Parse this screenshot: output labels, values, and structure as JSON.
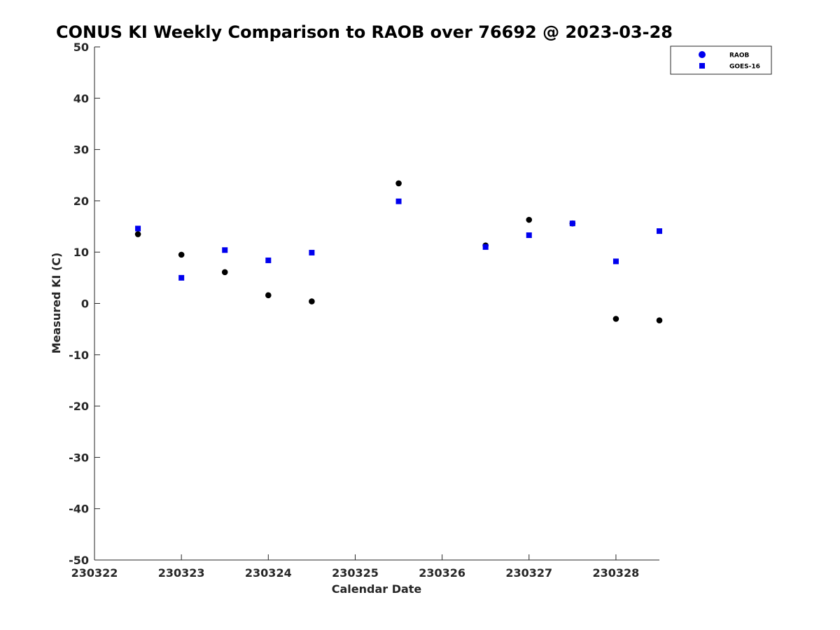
{
  "chart_data": {
    "type": "scatter",
    "title": "CONUS KI Weekly Comparison to RAOB over 76692 @ 2023-03-28",
    "xlabel": "Calendar Date",
    "ylabel": "Measured KI (C)",
    "xlim": [
      "2023-03-22",
      "2023-03-28T12:00"
    ],
    "ylim": [
      -50,
      50
    ],
    "x_ticks": [
      "2023-03-22",
      "2023-03-23",
      "2023-03-24",
      "2023-03-25",
      "2023-03-26",
      "2023-03-27",
      "2023-03-28"
    ],
    "x_tick_labels": [
      "230322",
      "230323",
      "230324",
      "230325",
      "230326",
      "230327",
      "230328"
    ],
    "y_ticks": [
      50,
      40,
      30,
      20,
      10,
      0,
      -10,
      -20,
      -30,
      -40,
      -50
    ],
    "y_tick_labels": [
      "50",
      "40",
      "30",
      "20",
      "10",
      "0",
      "-10",
      "-20",
      "-30",
      "-40",
      "-50"
    ],
    "grid": false,
    "legend_position": "top-right",
    "series": [
      {
        "name": "RAOB",
        "marker": "circle",
        "color": "#000000",
        "legend_color": "#0000ee",
        "points": [
          {
            "x": "2023-03-22T12:00",
            "y": 13.5
          },
          {
            "x": "2023-03-23T00:00",
            "y": 9.5
          },
          {
            "x": "2023-03-23T12:00",
            "y": 6.1
          },
          {
            "x": "2023-03-24T00:00",
            "y": 1.6
          },
          {
            "x": "2023-03-24T12:00",
            "y": 0.4
          },
          {
            "x": "2023-03-25T12:00",
            "y": 23.4
          },
          {
            "x": "2023-03-26T12:00",
            "y": 11.3
          },
          {
            "x": "2023-03-27T00:00",
            "y": 16.3
          },
          {
            "x": "2023-03-27T12:00",
            "y": 15.6
          },
          {
            "x": "2023-03-28T00:00",
            "y": -3.0
          },
          {
            "x": "2023-03-28T12:00",
            "y": -3.3
          }
        ]
      },
      {
        "name": "GOES-16",
        "marker": "square",
        "color": "#0000ee",
        "points": [
          {
            "x": "2023-03-22T12:00",
            "y": 14.6
          },
          {
            "x": "2023-03-23T00:00",
            "y": 5.0
          },
          {
            "x": "2023-03-23T12:00",
            "y": 10.4
          },
          {
            "x": "2023-03-24T00:00",
            "y": 8.4
          },
          {
            "x": "2023-03-24T12:00",
            "y": 9.9
          },
          {
            "x": "2023-03-25T12:00",
            "y": 19.9
          },
          {
            "x": "2023-03-26T12:00",
            "y": 11.0
          },
          {
            "x": "2023-03-27T00:00",
            "y": 13.3
          },
          {
            "x": "2023-03-27T12:00",
            "y": 15.6
          },
          {
            "x": "2023-03-28T00:00",
            "y": 8.2
          },
          {
            "x": "2023-03-28T12:00",
            "y": 14.1
          }
        ]
      }
    ]
  }
}
